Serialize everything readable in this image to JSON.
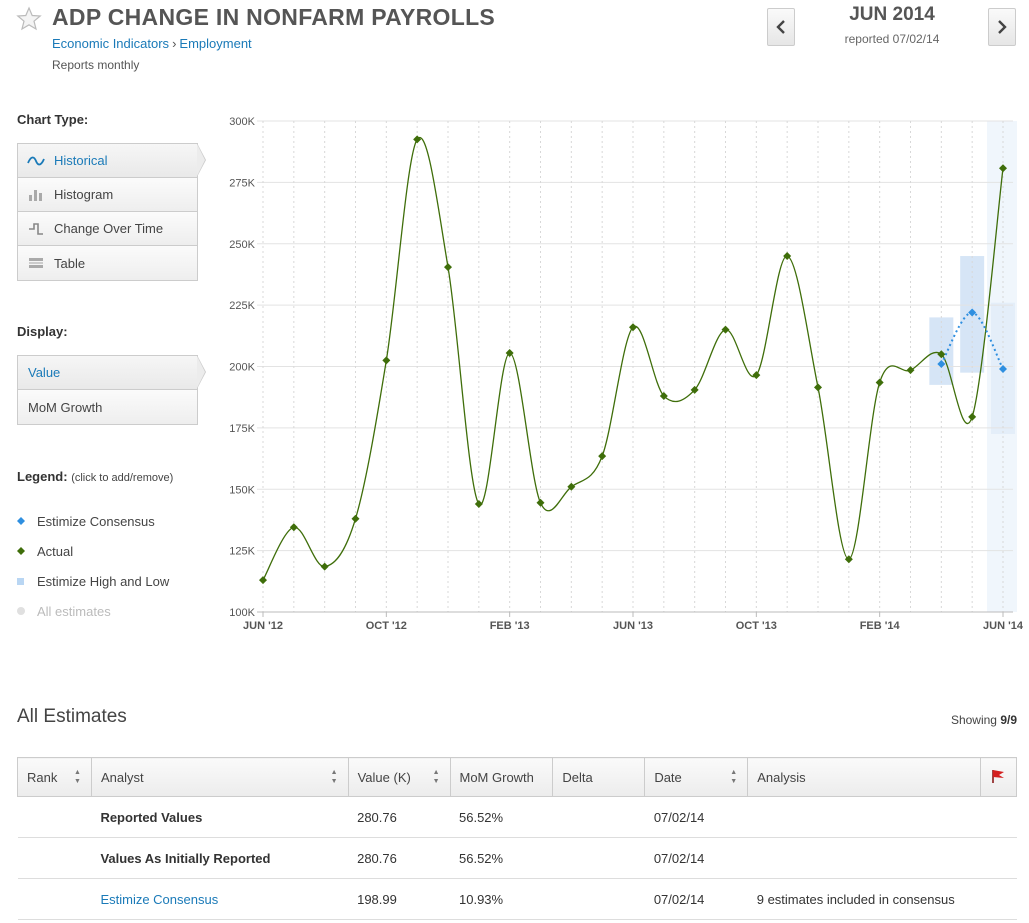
{
  "header": {
    "title": "ADP CHANGE IN NONFARM PAYROLLS",
    "breadcrumb": [
      "Economic Indicators",
      "Employment"
    ],
    "breadcrumb_sep": "›",
    "frequency": "Reports monthly",
    "period": "JUN 2014",
    "reported": "reported 07/02/14"
  },
  "sidebar": {
    "chart_type_label": "Chart Type:",
    "chart_types": [
      {
        "label": "Historical",
        "icon": "wave-icon",
        "active": true
      },
      {
        "label": "Histogram",
        "icon": "bars-icon",
        "active": false
      },
      {
        "label": "Change Over Time",
        "icon": "step-icon",
        "active": false
      },
      {
        "label": "Table",
        "icon": "table-icon",
        "active": false
      }
    ],
    "display_label": "Display:",
    "display_options": [
      {
        "label": "Value",
        "active": true
      },
      {
        "label": "MoM Growth",
        "active": false
      }
    ],
    "legend_label": "Legend:",
    "legend_hint": "(click to add/remove)",
    "legend_items": [
      {
        "label": "Estimize Consensus",
        "color": "#2f8fe0",
        "marker": "diamond",
        "enabled": true
      },
      {
        "label": "Actual",
        "color": "#3f6e0a",
        "marker": "diamond",
        "enabled": true
      },
      {
        "label": "Estimize High and Low",
        "color": "#b9d6f3",
        "marker": "square",
        "enabled": true
      },
      {
        "label": "All estimates",
        "color": "#dddddd",
        "marker": "circle",
        "enabled": false
      }
    ]
  },
  "chart_data": {
    "type": "line",
    "x": [
      "JUN '12",
      "JUL '12",
      "AUG '12",
      "SEP '12",
      "OCT '12",
      "NOV '12",
      "DEC '12",
      "JAN '13",
      "FEB '13",
      "MAR '13",
      "APR '13",
      "MAY '13",
      "JUN '13",
      "JUL '13",
      "AUG '13",
      "SEP '13",
      "OCT '13",
      "NOV '13",
      "DEC '13",
      "JAN '14",
      "FEB '14",
      "MAR '14",
      "APR '14",
      "MAY '14",
      "JUN '14"
    ],
    "x_tick_labels": [
      "JUN '12",
      "OCT '12",
      "FEB '13",
      "JUN '13",
      "OCT '13",
      "FEB '14",
      "JUN '14"
    ],
    "series": [
      {
        "name": "Actual",
        "color": "#3f6e0a",
        "values": [
          113,
          134.5,
          118.5,
          138,
          202.5,
          292.5,
          240.5,
          144,
          205.5,
          144.5,
          151,
          163.5,
          216,
          188,
          190.5,
          215,
          196.5,
          245,
          191.5,
          121.5,
          193.5,
          198.5,
          205,
          179.5,
          280.76
        ]
      },
      {
        "name": "Estimize Consensus",
        "color": "#2f8fe0",
        "style": "dotted",
        "x": [
          "APR '14",
          "MAY '14",
          "JUN '14"
        ],
        "values": [
          201,
          222,
          198.99
        ]
      }
    ],
    "ranges": {
      "name": "Estimize High and Low",
      "color": "#cfe1f5",
      "x": [
        "APR '14",
        "MAY '14",
        "JUN '14"
      ],
      "low": [
        192.5,
        197.5,
        172.5
      ],
      "high": [
        220,
        245,
        226
      ]
    },
    "ylim": [
      100,
      300
    ],
    "y_ticks": [
      "100K",
      "125K",
      "150K",
      "175K",
      "200K",
      "225K",
      "250K",
      "275K",
      "300K"
    ],
    "grid": true
  },
  "estimates": {
    "title": "All Estimates",
    "showing_label": "Showing",
    "showing_value": "9/9",
    "columns": [
      "Rank",
      "Analyst",
      "Value (K)",
      "MoM Growth",
      "Delta",
      "Date",
      "Analysis"
    ],
    "rows": [
      {
        "analyst": "Reported Values",
        "value": "280.76",
        "mom": "56.52%",
        "delta": "",
        "date": "07/02/14",
        "analysis": ""
      },
      {
        "analyst": "Values As Initially Reported",
        "value": "280.76",
        "mom": "56.52%",
        "delta": "",
        "date": "07/02/14",
        "analysis": ""
      },
      {
        "analyst": "Estimize Consensus",
        "value": "198.99",
        "mom": "10.93%",
        "delta": "",
        "date": "07/02/14",
        "analysis": "9 estimates included in consensus"
      }
    ]
  }
}
